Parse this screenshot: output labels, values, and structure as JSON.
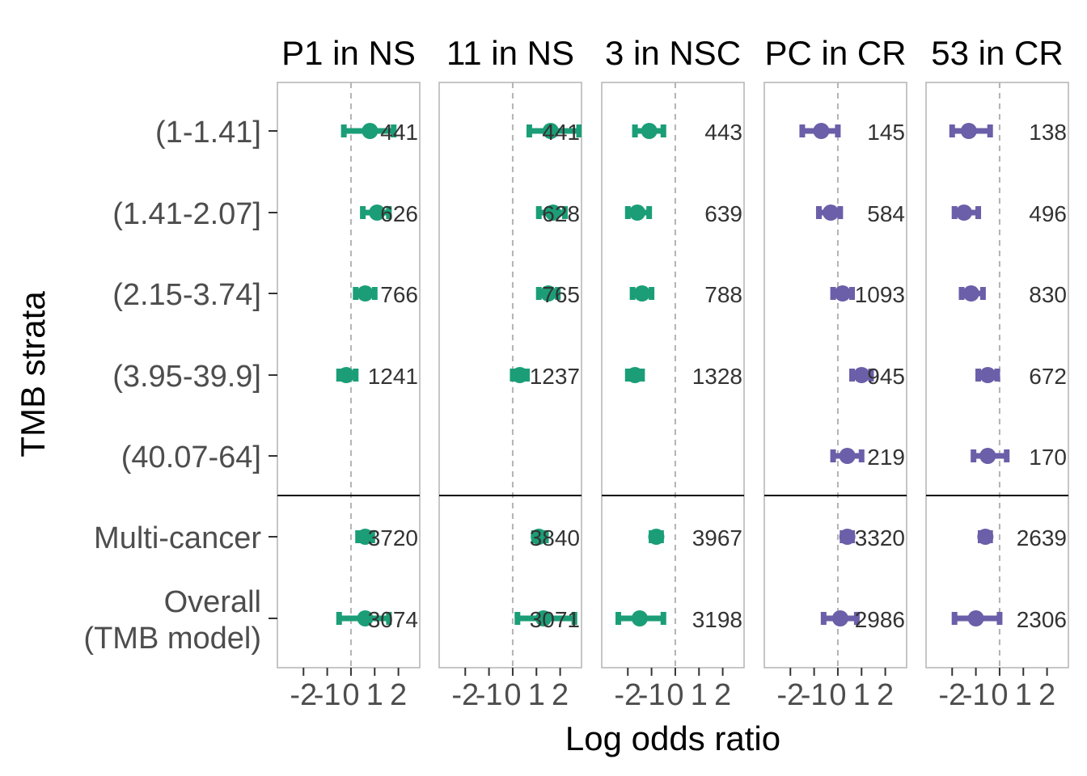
{
  "chart_data": {
    "type": "scatter",
    "xlabel": "Log odds ratio",
    "ylabel": "TMB strata",
    "xlim": [
      -3.1,
      2.9
    ],
    "xticks": [
      -2,
      -1,
      0,
      1,
      2
    ],
    "x_tick_labels": [
      "-2",
      "-1",
      "0",
      "1",
      "2"
    ],
    "reference_line_x": 0,
    "categories": [
      "(1-1.41]",
      "(1.41-2.07]",
      "(2.15-3.74]",
      "(3.95-39.9]",
      "(40.07-64]",
      "Multi-cancer",
      "Overall\n(TMB model)"
    ],
    "colors": {
      "green": "#1b9e77",
      "purple": "#6a5fa8",
      "frame": "#b3b3b3",
      "refline": "#b3b3b3"
    },
    "panels": [
      {
        "title": "P1 in NS",
        "color": "#1b9e77",
        "points": [
          {
            "row": 0,
            "est": 0.8,
            "lo": -0.3,
            "hi": 1.8,
            "n": "441"
          },
          {
            "row": 1,
            "est": 1.1,
            "lo": 0.5,
            "hi": 1.6,
            "n": "626"
          },
          {
            "row": 2,
            "est": 0.6,
            "lo": 0.2,
            "hi": 1.0,
            "n": "766"
          },
          {
            "row": 3,
            "est": -0.2,
            "lo": -0.5,
            "hi": 0.2,
            "n": "1241"
          },
          {
            "row": 5,
            "est": 0.6,
            "lo": 0.3,
            "hi": 0.9,
            "n": "3720"
          },
          {
            "row": 6,
            "est": 0.6,
            "lo": -0.5,
            "hi": 1.6,
            "n": "3074"
          }
        ]
      },
      {
        "title": "11 in NS",
        "color": "#1b9e77",
        "points": [
          {
            "row": 0,
            "est": 1.6,
            "lo": 0.7,
            "hi": 2.8,
            "n": "441"
          },
          {
            "row": 1,
            "est": 1.7,
            "lo": 1.1,
            "hi": 2.2,
            "n": "628"
          },
          {
            "row": 2,
            "est": 1.5,
            "lo": 1.1,
            "hi": 1.9,
            "n": "765"
          },
          {
            "row": 3,
            "est": 0.3,
            "lo": 0.0,
            "hi": 0.6,
            "n": "1237"
          },
          {
            "row": 5,
            "est": 1.1,
            "lo": 0.9,
            "hi": 1.4,
            "n": "3840"
          },
          {
            "row": 6,
            "est": 1.3,
            "lo": 0.2,
            "hi": 2.6,
            "n": "3071"
          }
        ]
      },
      {
        "title": "3 in NSC",
        "color": "#1b9e77",
        "points": [
          {
            "row": 0,
            "est": -1.1,
            "lo": -1.7,
            "hi": -0.5,
            "n": "443"
          },
          {
            "row": 1,
            "est": -1.6,
            "lo": -2.0,
            "hi": -1.1,
            "n": "639"
          },
          {
            "row": 2,
            "est": -1.4,
            "lo": -1.8,
            "hi": -1.0,
            "n": "788"
          },
          {
            "row": 3,
            "est": -1.7,
            "lo": -2.0,
            "hi": -1.4,
            "n": "1328"
          },
          {
            "row": 5,
            "est": -0.8,
            "lo": -1.0,
            "hi": -0.6,
            "n": "3967"
          },
          {
            "row": 6,
            "est": -1.5,
            "lo": -2.4,
            "hi": -0.5,
            "n": "3198"
          }
        ]
      },
      {
        "title": "PC in CR",
        "color": "#6a5fa8",
        "points": [
          {
            "row": 0,
            "est": -0.7,
            "lo": -1.5,
            "hi": 0.0,
            "n": "145"
          },
          {
            "row": 1,
            "est": -0.3,
            "lo": -0.8,
            "hi": 0.1,
            "n": "584"
          },
          {
            "row": 2,
            "est": 0.2,
            "lo": -0.2,
            "hi": 0.6,
            "n": "1093"
          },
          {
            "row": 3,
            "est": 1.0,
            "lo": 0.6,
            "hi": 1.4,
            "n": "945"
          },
          {
            "row": 4,
            "est": 0.4,
            "lo": -0.2,
            "hi": 1.0,
            "n": "219"
          },
          {
            "row": 5,
            "est": 0.4,
            "lo": 0.2,
            "hi": 0.6,
            "n": "3320"
          },
          {
            "row": 6,
            "est": 0.1,
            "lo": -0.6,
            "hi": 0.8,
            "n": "2986"
          }
        ]
      },
      {
        "title": "53 in CR",
        "color": "#6a5fa8",
        "points": [
          {
            "row": 0,
            "est": -1.3,
            "lo": -2.0,
            "hi": -0.4,
            "n": "138"
          },
          {
            "row": 1,
            "est": -1.5,
            "lo": -1.9,
            "hi": -0.9,
            "n": "496"
          },
          {
            "row": 2,
            "est": -1.2,
            "lo": -1.6,
            "hi": -0.7,
            "n": "830"
          },
          {
            "row": 3,
            "est": -0.5,
            "lo": -0.9,
            "hi": -0.1,
            "n": "672"
          },
          {
            "row": 4,
            "est": -0.5,
            "lo": -1.1,
            "hi": 0.3,
            "n": "170"
          },
          {
            "row": 5,
            "est": -0.6,
            "lo": -0.8,
            "hi": -0.4,
            "n": "2639"
          },
          {
            "row": 6,
            "est": -1.0,
            "lo": -1.9,
            "hi": 0.0,
            "n": "2306"
          }
        ]
      }
    ]
  }
}
